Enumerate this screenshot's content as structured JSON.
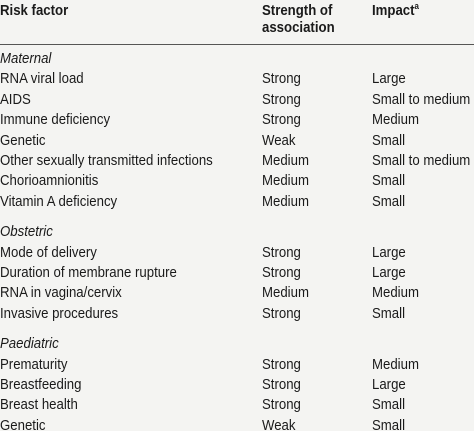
{
  "header": {
    "risk_factor": "Risk factor",
    "strength": "Strength of association",
    "impact": "Impact",
    "impact_note": "a"
  },
  "groups": [
    {
      "name": "Maternal",
      "rows": [
        [
          "RNA viral load",
          "Strong",
          "Large"
        ],
        [
          "AIDS",
          "Strong",
          "Small to medium"
        ],
        [
          "Immune deficiency",
          "Strong",
          "Medium"
        ],
        [
          "Genetic",
          "Weak",
          "Small"
        ],
        [
          "Other sexually transmitted infections",
          "Medium",
          "Small to medium"
        ],
        [
          "Chorioamnionitis",
          "Medium",
          "Small"
        ],
        [
          "Vitamin A deficiency",
          "Medium",
          "Small"
        ]
      ]
    },
    {
      "name": "Obstetric",
      "rows": [
        [
          "Mode of delivery",
          "Strong",
          "Large"
        ],
        [
          "Duration of membrane rupture",
          "Strong",
          "Large"
        ],
        [
          "RNA in vagina/cervix",
          "Medium",
          "Medium"
        ],
        [
          "Invasive procedures",
          "Strong",
          "Small"
        ]
      ]
    },
    {
      "name": "Paediatric",
      "rows": [
        [
          "Prematurity",
          "Strong",
          "Medium"
        ],
        [
          "Breastfeeding",
          "Strong",
          "Large"
        ],
        [
          "Breast health",
          "Strong",
          "Small"
        ],
        [
          "Genetic",
          "Weak",
          "Small"
        ]
      ]
    }
  ]
}
